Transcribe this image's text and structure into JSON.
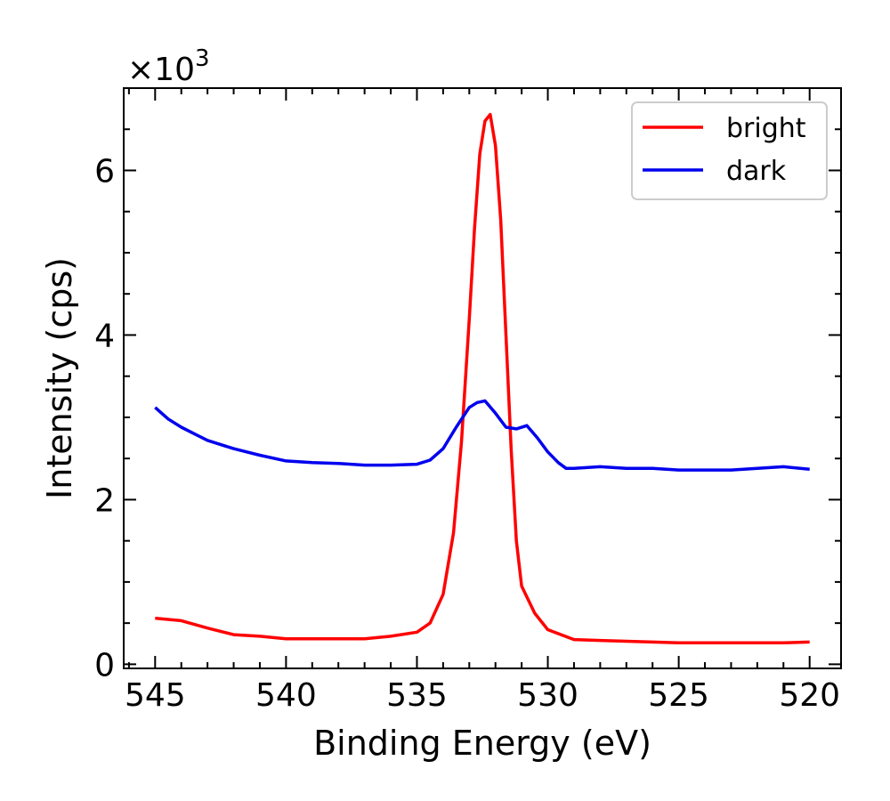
{
  "chart_data": {
    "type": "line",
    "xlabel": "Binding Energy (eV)",
    "ylabel": "Intensity (cps)",
    "y_multiplier": "×10",
    "y_multiplier_exp": "3",
    "xlim": [
      546.2,
      518.8
    ],
    "ylim": [
      -0.05,
      7.0
    ],
    "x_reversed": true,
    "x_ticks": [
      545,
      540,
      535,
      530,
      525,
      520
    ],
    "x_tick_labels": [
      "545",
      "540",
      "535",
      "530",
      "525",
      "520"
    ],
    "y_ticks": [
      0,
      2,
      4,
      6
    ],
    "y_tick_labels": [
      "0",
      "2",
      "4",
      "6"
    ],
    "grid": false,
    "legend": "upper right",
    "series": [
      {
        "name": "bright",
        "color": "#ff0000",
        "x": [
          545,
          544,
          543,
          542,
          541,
          540,
          539,
          538,
          537,
          536,
          535,
          534.5,
          534,
          533.6,
          533.3,
          533,
          532.8,
          532.6,
          532.4,
          532.2,
          532,
          531.8,
          531.6,
          531.4,
          531.2,
          531,
          530.5,
          530,
          529,
          528,
          527,
          526,
          525,
          524,
          523,
          522,
          521,
          520
        ],
        "values": [
          0.56,
          0.53,
          0.44,
          0.36,
          0.34,
          0.31,
          0.31,
          0.31,
          0.31,
          0.34,
          0.39,
          0.5,
          0.85,
          1.6,
          2.7,
          4.2,
          5.3,
          6.2,
          6.6,
          6.68,
          6.3,
          5.4,
          4.0,
          2.6,
          1.5,
          0.95,
          0.62,
          0.42,
          0.3,
          0.29,
          0.28,
          0.27,
          0.26,
          0.26,
          0.26,
          0.26,
          0.26,
          0.27
        ]
      },
      {
        "name": "dark",
        "color": "#0000ee",
        "x": [
          545,
          544.5,
          544,
          543.5,
          543,
          542,
          541,
          540,
          539,
          538,
          537,
          536,
          535,
          534.5,
          534,
          533.5,
          533,
          532.7,
          532.4,
          532,
          531.6,
          531.2,
          530.8,
          530.4,
          530,
          529.6,
          529.3,
          529,
          528,
          527,
          526,
          525,
          524,
          523,
          522,
          521,
          520
        ],
        "values": [
          3.12,
          2.98,
          2.88,
          2.8,
          2.72,
          2.62,
          2.54,
          2.47,
          2.45,
          2.44,
          2.42,
          2.42,
          2.43,
          2.48,
          2.62,
          2.88,
          3.12,
          3.18,
          3.2,
          3.05,
          2.88,
          2.86,
          2.9,
          2.75,
          2.58,
          2.45,
          2.38,
          2.38,
          2.4,
          2.38,
          2.38,
          2.36,
          2.36,
          2.36,
          2.38,
          2.4,
          2.37
        ]
      }
    ]
  }
}
